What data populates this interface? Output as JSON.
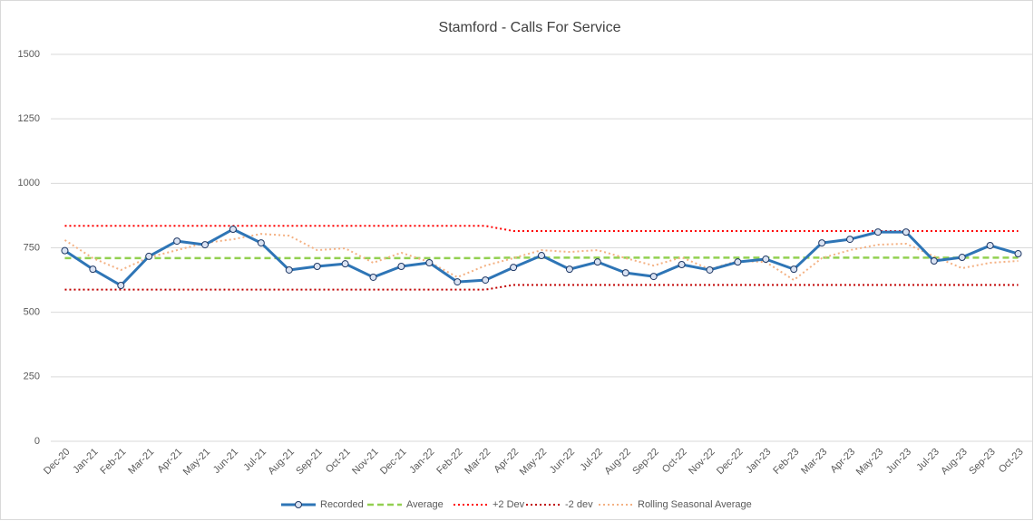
{
  "chart_data": {
    "type": "line",
    "title": "Stamford - Calls For Service",
    "categories": [
      "Dec-20",
      "Jan-21",
      "Feb-21",
      "Mar-21",
      "Apr-21",
      "May-21",
      "Jun-21",
      "Jul-21",
      "Aug-21",
      "Sep-21",
      "Oct-21",
      "Nov-21",
      "Dec-21",
      "Jan-22",
      "Feb-22",
      "Mar-22",
      "Apr-22",
      "May-22",
      "Jun-22",
      "Jul-22",
      "Aug-22",
      "Sep-22",
      "Oct-22",
      "Nov-22",
      "Dec-22",
      "Jan-23",
      "Feb-23",
      "Mar-23",
      "Apr-23",
      "May-23",
      "Jun-23",
      "Jul-23",
      "Aug-23",
      "Sep-23",
      "Oct-23"
    ],
    "series": [
      {
        "name": "Recorded",
        "color": "#2e75b6",
        "values": [
          739,
          667,
          604,
          717,
          776,
          762,
          822,
          769,
          664,
          678,
          688,
          636,
          678,
          692,
          618,
          625,
          674,
          720,
          667,
          695,
          653,
          639,
          685,
          664,
          695,
          706,
          667,
          769,
          783,
          811,
          811,
          699,
          713,
          759,
          727
        ]
      },
      {
        "name": "Average",
        "color": "#92d050",
        "values": [
          710,
          710,
          710,
          710,
          710,
          710,
          710,
          710,
          710,
          710,
          710,
          710,
          710,
          710,
          710,
          710,
          712,
          712,
          712,
          712,
          712,
          712,
          712,
          712,
          712,
          712,
          712,
          712,
          712,
          712,
          712,
          712,
          712,
          712,
          712
        ]
      },
      {
        "name": "+2 Dev",
        "color": "#ff0000",
        "values": [
          835,
          835,
          835,
          835,
          835,
          835,
          835,
          835,
          835,
          835,
          835,
          835,
          835,
          835,
          835,
          835,
          815,
          815,
          815,
          815,
          815,
          815,
          815,
          815,
          815,
          815,
          815,
          815,
          815,
          815,
          815,
          815,
          815,
          815,
          815
        ]
      },
      {
        "name": "-2 dev",
        "color": "#c00000",
        "values": [
          588,
          588,
          588,
          588,
          588,
          588,
          588,
          588,
          588,
          588,
          588,
          588,
          588,
          588,
          588,
          588,
          606,
          606,
          606,
          606,
          606,
          606,
          606,
          606,
          606,
          606,
          606,
          606,
          606,
          606,
          606,
          606,
          606,
          606,
          606
        ]
      },
      {
        "name": "Rolling Seasonal Average",
        "color": "#f4b183",
        "values": [
          780,
          710,
          664,
          713,
          741,
          769,
          783,
          804,
          797,
          741,
          748,
          692,
          731,
          695,
          636,
          681,
          710,
          741,
          734,
          741,
          710,
          681,
          713,
          667,
          699,
          695,
          625,
          710,
          741,
          762,
          766,
          717,
          671,
          692,
          699
        ]
      }
    ],
    "ylim": [
      0,
      1500
    ],
    "yticks": [
      0,
      250,
      500,
      750,
      1000,
      1250,
      1500
    ],
    "grid": true,
    "legend": "bottom"
  }
}
